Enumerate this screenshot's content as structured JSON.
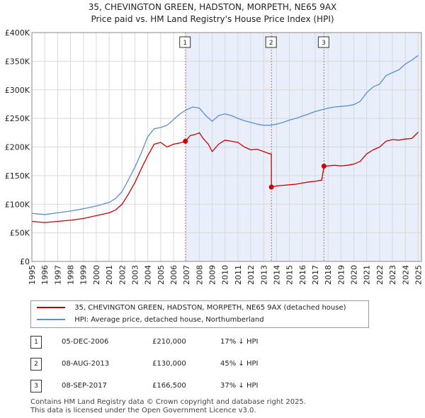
{
  "title": {
    "line1": "35, CHEVINGTON GREEN, HADSTON, MORPETH, NE65 9AX",
    "line2": "Price paid vs. HM Land Registry's House Price Index (HPI)"
  },
  "chart_data": {
    "type": "line",
    "title": "35, CHEVINGTON GREEN, HADSTON, MORPETH, NE65 9AX — Price paid vs. HM Land Registry's House Price Index (HPI)",
    "xlim": [
      1995,
      2025.25
    ],
    "ylim": [
      0,
      400000
    ],
    "x_ticks": [
      "1995",
      "1996",
      "1997",
      "1998",
      "1999",
      "2000",
      "2001",
      "2002",
      "2003",
      "2004",
      "2005",
      "2006",
      "2007",
      "2008",
      "2009",
      "2010",
      "2011",
      "2012",
      "2013",
      "2014",
      "2015",
      "2016",
      "2017",
      "2018",
      "2019",
      "2020",
      "2021",
      "2022",
      "2023",
      "2024",
      "2025"
    ],
    "y_ticks": [
      {
        "value": 0,
        "label": "£0"
      },
      {
        "value": 50000,
        "label": "£50K"
      },
      {
        "value": 100000,
        "label": "£100K"
      },
      {
        "value": 150000,
        "label": "£150K"
      },
      {
        "value": 200000,
        "label": "£200K"
      },
      {
        "value": 250000,
        "label": "£250K"
      },
      {
        "value": 300000,
        "label": "£300K"
      },
      {
        "value": 350000,
        "label": "£350K"
      },
      {
        "value": 400000,
        "label": "£400K"
      }
    ],
    "grid": true,
    "series": [
      {
        "name": "35, CHEVINGTON GREEN, HADSTON, MORPETH, NE65 9AX (detached house)",
        "color": "#cc0000",
        "x": [
          1995.0,
          1996.0,
          1997.0,
          1998.0,
          1999.0,
          2000.0,
          2001.0,
          2001.5,
          2002.0,
          2002.5,
          2003.0,
          2003.5,
          2004.0,
          2004.5,
          2005.0,
          2005.5,
          2006.0,
          2006.5,
          2006.92,
          2007.3,
          2007.7,
          2008.0,
          2008.3,
          2008.7,
          2009.0,
          2009.5,
          2010.0,
          2010.5,
          2011.0,
          2011.5,
          2012.0,
          2012.5,
          2013.0,
          2013.5,
          2013.59,
          2013.6,
          2014.0,
          2014.5,
          2015.0,
          2015.5,
          2016.0,
          2016.5,
          2017.0,
          2017.5,
          2017.68,
          2017.7,
          2018.0,
          2018.5,
          2019.0,
          2019.5,
          2020.0,
          2020.5,
          2021.0,
          2021.5,
          2022.0,
          2022.5,
          2023.0,
          2023.5,
          2024.0,
          2024.5,
          2025.0
        ],
        "y": [
          70000,
          68000,
          70000,
          72000,
          75000,
          80000,
          85000,
          90000,
          100000,
          118000,
          138000,
          162000,
          185000,
          205000,
          208000,
          200000,
          205000,
          207000,
          210000,
          220000,
          222000,
          225000,
          215000,
          205000,
          192000,
          205000,
          212000,
          210000,
          208000,
          200000,
          195000,
          196000,
          192000,
          188000,
          188000,
          130000,
          132000,
          133000,
          134000,
          135000,
          137000,
          139000,
          140000,
          142000,
          166500,
          166500,
          167000,
          168000,
          167000,
          168000,
          170000,
          175000,
          188000,
          195000,
          200000,
          210000,
          213000,
          212000,
          214000,
          215000,
          226000
        ]
      },
      {
        "name": "HPI: Average price, detached house, Northumberland",
        "color": "#5b8ed0",
        "x": [
          1995.0,
          1996.0,
          1997.0,
          1998.0,
          1999.0,
          2000.0,
          2001.0,
          2001.5,
          2002.0,
          2002.5,
          2003.0,
          2003.5,
          2004.0,
          2004.5,
          2005.0,
          2005.5,
          2006.0,
          2006.5,
          2007.0,
          2007.5,
          2008.0,
          2008.5,
          2009.0,
          2009.5,
          2010.0,
          2010.5,
          2011.0,
          2011.5,
          2012.0,
          2012.5,
          2013.0,
          2013.5,
          2014.0,
          2014.5,
          2015.0,
          2015.5,
          2016.0,
          2016.5,
          2017.0,
          2017.5,
          2018.0,
          2018.5,
          2019.0,
          2019.5,
          2020.0,
          2020.5,
          2021.0,
          2021.5,
          2022.0,
          2022.5,
          2023.0,
          2023.5,
          2024.0,
          2024.5,
          2025.0
        ],
        "y": [
          84000,
          82000,
          85000,
          88000,
          92000,
          97000,
          103000,
          110000,
          122000,
          143000,
          165000,
          190000,
          218000,
          232000,
          234000,
          238000,
          248000,
          258000,
          265000,
          270000,
          268000,
          255000,
          245000,
          255000,
          258000,
          255000,
          250000,
          246000,
          243000,
          240000,
          238000,
          238000,
          240000,
          243000,
          247000,
          250000,
          254000,
          258000,
          262000,
          265000,
          268000,
          270000,
          271000,
          272000,
          274000,
          280000,
          295000,
          305000,
          310000,
          325000,
          330000,
          335000,
          345000,
          352000,
          360000
        ]
      }
    ],
    "sales": [
      {
        "id": "1",
        "x": 2006.92,
        "price": 210000
      },
      {
        "id": "2",
        "x": 2013.6,
        "price": 130000
      },
      {
        "id": "3",
        "x": 2017.68,
        "price": 166500
      }
    ]
  },
  "legend": {
    "property_label": "35, CHEVINGTON GREEN, HADSTON, MORPETH, NE65 9AX (detached house)",
    "hpi_label": "HPI: Average price, detached house, Northumberland",
    "property_color": "#cc0000",
    "hpi_color": "#5b8ed0"
  },
  "transactions": [
    {
      "num": "1",
      "date": "05-DEC-2006",
      "price": "£210,000",
      "pct": "17% ↓ HPI"
    },
    {
      "num": "2",
      "date": "08-AUG-2013",
      "price": "£130,000",
      "pct": "45% ↓ HPI"
    },
    {
      "num": "3",
      "date": "08-SEP-2017",
      "price": "£166,500",
      "pct": "37% ↓ HPI"
    }
  ],
  "footer": {
    "line1": "Contains HM Land Registry data © Crown copyright and database right 2025.",
    "line2": "This data is licensed under the Open Government Licence v3.0."
  }
}
